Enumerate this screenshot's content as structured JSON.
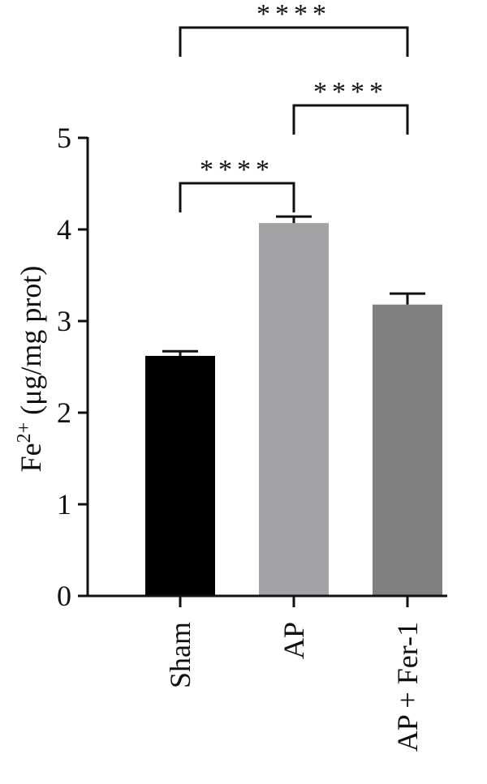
{
  "chart_data": {
    "type": "bar",
    "title": "",
    "xlabel": "",
    "ylabel": {
      "base": "Fe",
      "superscript": "2+",
      "rest": " (μg/mg prot)"
    },
    "ylim": [
      0,
      5
    ],
    "yticks": [
      "0",
      "1",
      "2",
      "3",
      "4",
      "5"
    ],
    "grid": false,
    "categories": [
      "Sham",
      "AP",
      "AP + Fer-1"
    ],
    "values": [
      2.62,
      4.07,
      3.18
    ],
    "errors": [
      0.05,
      0.07,
      0.12
    ],
    "colors": [
      "#000000",
      "#a3a3a6",
      "#808080"
    ],
    "significance": [
      {
        "from": 0,
        "to": 1,
        "label": "****"
      },
      {
        "from": 1,
        "to": 2,
        "label": "****"
      },
      {
        "from": 0,
        "to": 2,
        "label": "****"
      }
    ]
  }
}
